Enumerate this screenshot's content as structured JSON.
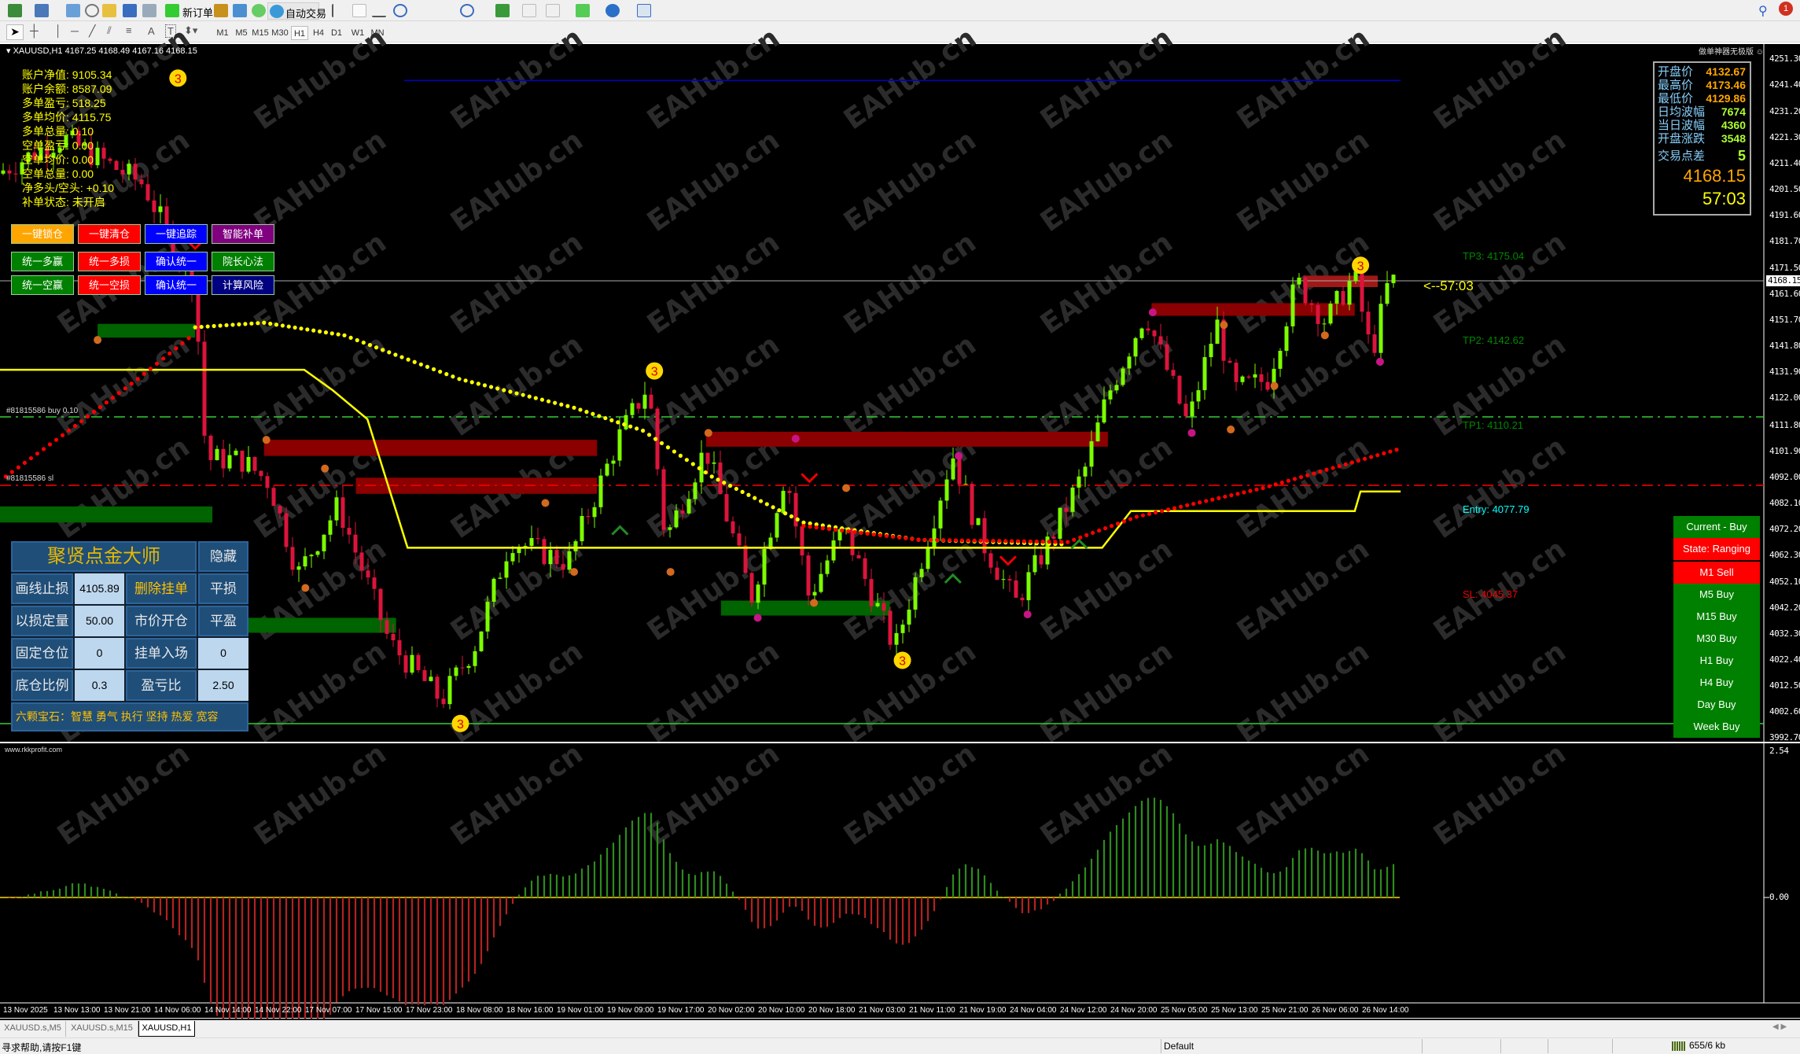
{
  "toolbar": {
    "new_order": "新订单",
    "auto_trading": "自动交易",
    "notification_count": "1",
    "timeframes": [
      "M1",
      "M5",
      "M15",
      "M30",
      "H1",
      "H4",
      "D1",
      "W1",
      "MN"
    ],
    "selected_timeframe": "H1"
  },
  "chart": {
    "header": "XAUUSD,H1  4167.25 4168.49 4167.16 4168.15",
    "watermark": "EAHub.cn",
    "current_price": "4168.15",
    "countdown_label": "<--57:03",
    "order_buy_label": "#81815586 buy 0.10",
    "order_sl_label": "#81815586 sl",
    "oscillator_label": "www.rkkprofit.com",
    "colors": {
      "bull": "#7cfc00",
      "bear": "#dc143c",
      "ma": "#ffff00",
      "trail": "#ff0000"
    }
  },
  "account_info": [
    {
      "label": "账户净值",
      "value": "9105.34"
    },
    {
      "label": "账户余额",
      "value": "8587.09"
    },
    {
      "label": "多单盈亏",
      "value": "518.25"
    },
    {
      "label": "多单均价",
      "value": "4115.75"
    },
    {
      "label": "多单总量",
      "value": "0.10"
    },
    {
      "label": "空单盈亏",
      "value": "0.00"
    },
    {
      "label": "空单均价",
      "value": "0.00"
    },
    {
      "label": "空单总量",
      "value": "0.00"
    },
    {
      "label": "净多头/空头",
      "value": "+0.10"
    },
    {
      "label": "补单状态",
      "value": "未开启"
    }
  ],
  "action_buttons": [
    {
      "label": "一键锁仓",
      "color": "#ffa500"
    },
    {
      "label": "一键清仓",
      "color": "#ff0000"
    },
    {
      "label": "一键追踪",
      "color": "#0000ff"
    },
    {
      "label": "智能补单",
      "color": "#800080"
    },
    {
      "label": "统一多赢",
      "color": "#008000"
    },
    {
      "label": "统一多损",
      "color": "#ff0000"
    },
    {
      "label": "确认统一",
      "color": "#0000ff"
    },
    {
      "label": "院长心法",
      "color": "#008000"
    },
    {
      "label": "统一空赢",
      "color": "#008000"
    },
    {
      "label": "统一空损",
      "color": "#ff0000"
    },
    {
      "label": "确认统一",
      "color": "#0000ff"
    },
    {
      "label": "计算风险",
      "color": "#000080"
    }
  ],
  "trade_panel": {
    "title": "聚贤点金大师",
    "hide": "隐藏",
    "rows": [
      {
        "label": "画线止损",
        "value": "4105.89",
        "action": "删除挂单",
        "action2": "平损"
      },
      {
        "label": "以损定量",
        "value": "50.00",
        "action": "市价开仓",
        "action2": "平盈"
      },
      {
        "label": "固定仓位",
        "value": "0",
        "action": "挂单入场",
        "value2": "0"
      },
      {
        "label": "底仓比例",
        "value": "0.3",
        "action": "盈亏比",
        "value2": "2.50"
      }
    ],
    "footer": "六颗宝石：智慧  勇气  执行  坚持  热爱  宽容"
  },
  "market_box": {
    "brand": "做单神器无极版 ☺",
    "rows": [
      {
        "label": "开盘价",
        "value": "4132.67",
        "color": "#ffa500"
      },
      {
        "label": "最高价",
        "value": "4173.46",
        "color": "#ffa500"
      },
      {
        "label": "最低价",
        "value": "4129.86",
        "color": "#ffa500"
      },
      {
        "label": "日均波幅",
        "value": "7674",
        "color": "#adff2f"
      },
      {
        "label": "当日波幅",
        "value": "4360",
        "color": "#adff2f"
      },
      {
        "label": "开盘涨跌",
        "value": "3548",
        "color": "#adff2f"
      }
    ],
    "spread_label": "交易点差",
    "spread": "5",
    "price": "4168.15",
    "timer": "57:03"
  },
  "levels": {
    "tp3": "TP3: 4175.04",
    "tp2": "TP2: 4142.62",
    "tp1": "TP1: 4110.21",
    "entry": "Entry: 4077.79",
    "sl": "SL: 4045.37"
  },
  "signals": [
    {
      "label": "Current - Buy",
      "state": "buy"
    },
    {
      "label": "State: Ranging",
      "state": "sell"
    },
    {
      "label": "M1 Sell",
      "state": "sell"
    },
    {
      "label": "M5 Buy",
      "state": "buy"
    },
    {
      "label": "M15 Buy",
      "state": "buy"
    },
    {
      "label": "M30 Buy",
      "state": "buy"
    },
    {
      "label": "H1 Buy",
      "state": "buy"
    },
    {
      "label": "H4 Buy",
      "state": "buy"
    },
    {
      "label": "Day Buy",
      "state": "buy"
    },
    {
      "label": "Week Buy",
      "state": "buy"
    }
  ],
  "price_axis": [
    "4251.30",
    "4241.40",
    "4231.20",
    "4221.30",
    "4211.40",
    "4201.50",
    "4191.60",
    "4181.70",
    "4171.50",
    "4161.60",
    "4151.70",
    "4141.80",
    "4131.90",
    "4122.00",
    "4111.80",
    "4101.90",
    "4092.00",
    "4082.10",
    "4072.20",
    "4062.30",
    "4052.10",
    "4042.20",
    "4032.30",
    "4022.40",
    "4012.50",
    "4002.60",
    "3992.70"
  ],
  "osc_axis": [
    "2.54",
    "0.00"
  ],
  "time_axis": [
    "13 Nov 2025",
    "13 Nov 13:00",
    "13 Nov 21:00",
    "14 Nov 06:00",
    "14 Nov 14:00",
    "14 Nov 22:00",
    "17 Nov 07:00",
    "17 Nov 15:00",
    "17 Nov 23:00",
    "18 Nov 08:00",
    "18 Nov 16:00",
    "19 Nov 01:00",
    "19 Nov 09:00",
    "19 Nov 17:00",
    "20 Nov 02:00",
    "20 Nov 10:00",
    "20 Nov 18:00",
    "21 Nov 03:00",
    "21 Nov 11:00",
    "21 Nov 19:00",
    "24 Nov 04:00",
    "24 Nov 12:00",
    "24 Nov 20:00",
    "25 Nov 05:00",
    "25 Nov 13:00",
    "25 Nov 21:00",
    "26 Nov 06:00",
    "26 Nov 14:00"
  ],
  "tabs": [
    {
      "label": "XAUUSD.s,M5"
    },
    {
      "label": "XAUUSD.s,M15"
    },
    {
      "label": "XAUUSD,H1",
      "active": true
    }
  ],
  "status": {
    "help": "寻求帮助,请按F1键",
    "profile": "Default",
    "traffic": "655/6 kb"
  }
}
